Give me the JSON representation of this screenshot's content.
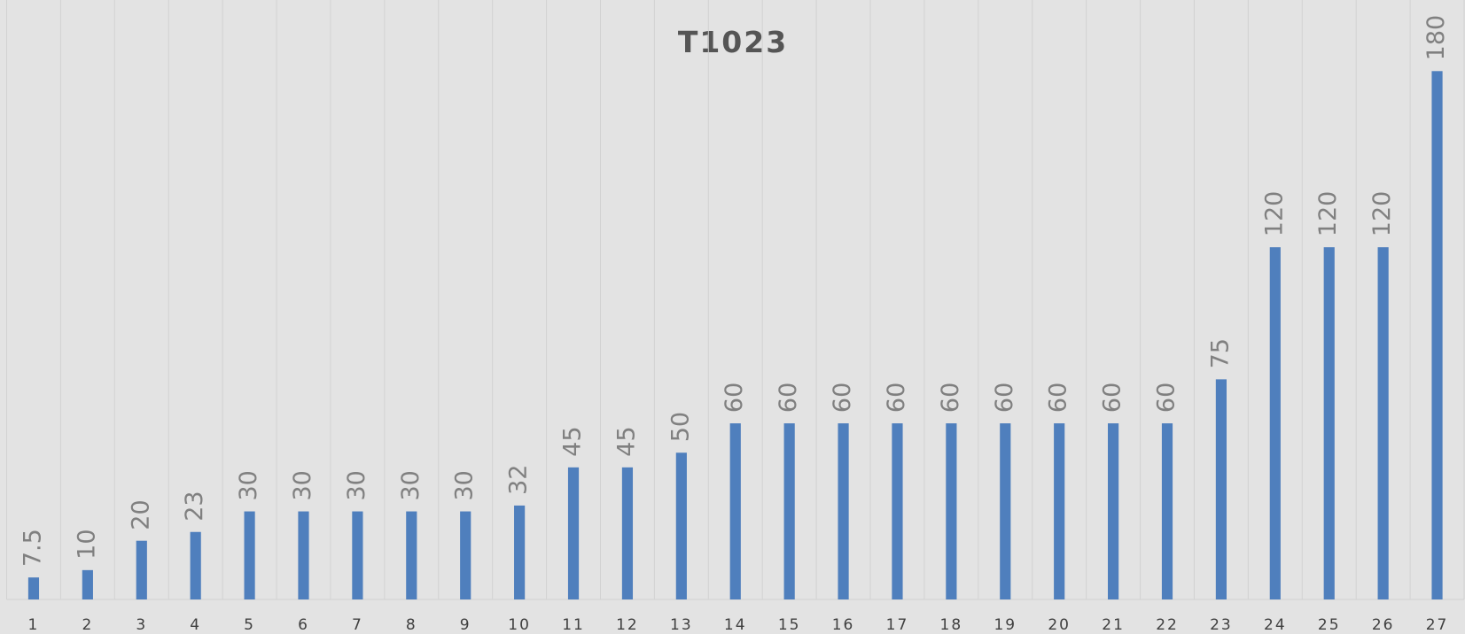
{
  "chart_data": {
    "type": "bar",
    "title": "T1023",
    "categories": [
      "1",
      "2",
      "3",
      "4",
      "5",
      "6",
      "7",
      "8",
      "9",
      "10",
      "11",
      "12",
      "13",
      "14",
      "15",
      "16",
      "17",
      "18",
      "19",
      "20",
      "21",
      "22",
      "23",
      "24",
      "25",
      "26",
      "27"
    ],
    "values": [
      7.5,
      10,
      20,
      23,
      30,
      30,
      30,
      30,
      30,
      32,
      45,
      45,
      50,
      60,
      60,
      60,
      60,
      60,
      60,
      60,
      60,
      60,
      75,
      120,
      120,
      120,
      180
    ],
    "color": "#4f7fbd",
    "ylim": [
      0,
      200
    ],
    "grid": true
  }
}
